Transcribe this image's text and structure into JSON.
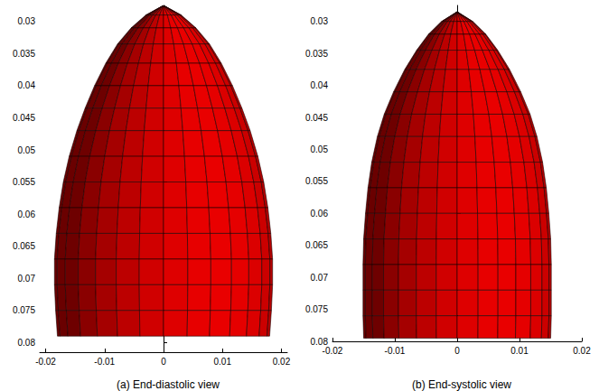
{
  "chart_data": [
    {
      "type": "surface",
      "title": "(a) End-diastolic view",
      "color": "#d40000",
      "grid": false,
      "xlim": [
        -0.021,
        0.021
      ],
      "ylim": [
        0.0275,
        0.0815
      ],
      "xticks": [
        -0.02,
        -0.01,
        0,
        0.01,
        0.02
      ],
      "yticks": [
        0.03,
        0.035,
        0.04,
        0.045,
        0.05,
        0.055,
        0.06,
        0.065,
        0.07,
        0.075,
        0.08
      ],
      "profile": {
        "y": [
          0.0275,
          0.029,
          0.031,
          0.0335,
          0.0365,
          0.04,
          0.0435,
          0.047,
          0.051,
          0.055,
          0.059,
          0.063,
          0.067,
          0.071,
          0.075,
          0.079
        ],
        "radius": [
          0,
          0.003,
          0.0055,
          0.0078,
          0.0098,
          0.0117,
          0.0133,
          0.0147,
          0.016,
          0.017,
          0.0177,
          0.0182,
          0.0185,
          0.0185,
          0.0183,
          0.018
        ]
      }
    },
    {
      "type": "surface",
      "title": "(b) End-systolic view",
      "color": "#d40000",
      "grid": false,
      "xlim": [
        -0.02,
        0.02
      ],
      "ylim": [
        0.0275,
        0.08
      ],
      "xticks": [
        -0.02,
        -0.01,
        0,
        0.01,
        0.02
      ],
      "yticks": [
        0.03,
        0.035,
        0.04,
        0.045,
        0.05,
        0.055,
        0.06,
        0.065,
        0.07,
        0.075,
        0.08
      ],
      "profile": {
        "y": [
          0.0285,
          0.03,
          0.032,
          0.0345,
          0.0375,
          0.041,
          0.0445,
          0.048,
          0.052,
          0.056,
          0.06,
          0.064,
          0.068,
          0.072,
          0.076,
          0.0795
        ],
        "radius": [
          0,
          0.0025,
          0.0046,
          0.0065,
          0.0084,
          0.0102,
          0.0117,
          0.0128,
          0.0137,
          0.0143,
          0.0147,
          0.015,
          0.0151,
          0.0151,
          0.0151,
          0.015
        ]
      }
    }
  ]
}
